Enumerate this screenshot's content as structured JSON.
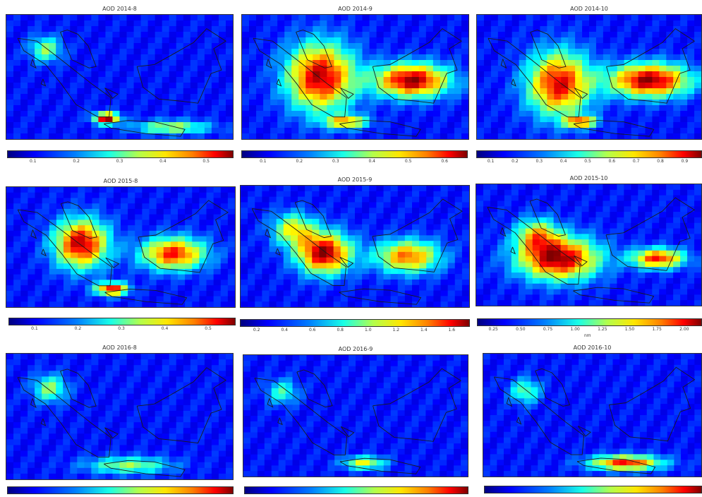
{
  "panels": [
    {
      "title": "AOD 2014-8",
      "ticks": [
        "0.1",
        "0.2",
        "0.3",
        "0.4",
        "0.5"
      ],
      "hotspots": [
        {
          "lon": 105.5,
          "lat": -6.0,
          "level": 1.0,
          "rx": 1.2,
          "ry": 0.7
        },
        {
          "lon": 98.5,
          "lat": 4.0,
          "level": 0.45,
          "rx": 1.5,
          "ry": 1.5
        },
        {
          "lon": 113,
          "lat": -7.3,
          "level": 0.5,
          "rx": 3.5,
          "ry": 0.8
        }
      ]
    },
    {
      "title": "AOD 2014-9",
      "ticks": [
        "0.1",
        "0.2",
        "0.3",
        "0.4",
        "0.5",
        "0.6"
      ],
      "hotspots": [
        {
          "lon": 103.0,
          "lat": 0.0,
          "level": 0.95,
          "rx": 3.2,
          "ry": 4.0
        },
        {
          "lon": 113.5,
          "lat": -0.5,
          "level": 1.0,
          "rx": 3.5,
          "ry": 2.0
        },
        {
          "lon": 106,
          "lat": -6.5,
          "level": 0.65,
          "rx": 2,
          "ry": 0.8
        }
      ]
    },
    {
      "title": "AOD 2014-10",
      "ticks": [
        "0.1",
        "0.2",
        "0.3",
        "0.4",
        "0.5",
        "0.6",
        "0.7",
        "0.8",
        "0.9"
      ],
      "hotspots": [
        {
          "lon": 103.5,
          "lat": -1.0,
          "level": 0.9,
          "rx": 3,
          "ry": 3.8
        },
        {
          "lon": 114.0,
          "lat": -0.5,
          "level": 1.0,
          "rx": 3.8,
          "ry": 2
        },
        {
          "lon": 106,
          "lat": -6.5,
          "level": 0.75,
          "rx": 1.5,
          "ry": 0.7
        }
      ]
    },
    {
      "title": "AOD 2015-8",
      "ticks": [
        "0.1",
        "0.2",
        "0.3",
        "0.4",
        "0.5"
      ],
      "hotspots": [
        {
          "lon": 102.5,
          "lat": 0.5,
          "level": 0.95,
          "rx": 2.5,
          "ry": 3
        },
        {
          "lon": 113,
          "lat": -1.0,
          "level": 0.85,
          "rx": 3,
          "ry": 2
        },
        {
          "lon": 106,
          "lat": -6.3,
          "level": 0.9,
          "rx": 1.5,
          "ry": 0.8
        }
      ]
    },
    {
      "title": "AOD 2015-9",
      "ticks": [
        "0.2",
        "0.4",
        "0.6",
        "0.8",
        "1.0",
        "1.2",
        "1.4",
        "1.6"
      ],
      "hotspots": [
        {
          "lon": 103.5,
          "lat": -1.0,
          "level": 1.0,
          "rx": 2.5,
          "ry": 2.5
        },
        {
          "lon": 113,
          "lat": -1.5,
          "level": 0.75,
          "rx": 3,
          "ry": 2
        },
        {
          "lon": 100,
          "lat": 2.5,
          "level": 0.55,
          "rx": 2,
          "ry": 2
        }
      ]
    },
    {
      "title": "AOD 2015-10",
      "ticks": [
        "0.25",
        "0.50",
        "0.75",
        "1.00",
        "1.25",
        "1.50",
        "1.75",
        "2.00"
      ],
      "unit": "nm",
      "hotspots": [
        {
          "lon": 103.5,
          "lat": -2.0,
          "level": 1.0,
          "rx": 3.8,
          "ry": 2.6
        },
        {
          "lon": 115,
          "lat": -2.0,
          "level": 0.85,
          "rx": 2.5,
          "ry": 1.2
        },
        {
          "lon": 101,
          "lat": 1.5,
          "level": 0.55,
          "rx": 2,
          "ry": 2
        }
      ]
    },
    {
      "title": "AOD 2016-8",
      "ticks": [],
      "hotspots": [
        {
          "lon": 99,
          "lat": 4,
          "level": 0.45,
          "rx": 1.6,
          "ry": 1.6
        },
        {
          "lon": 108,
          "lat": -7.0,
          "level": 0.45,
          "rx": 4,
          "ry": 1
        }
      ]
    },
    {
      "title": "AOD 2016-9",
      "ticks": [],
      "hotspots": [
        {
          "lon": 108,
          "lat": -7.0,
          "level": 0.55,
          "rx": 2,
          "ry": 0.8
        },
        {
          "lon": 98.5,
          "lat": 3.5,
          "level": 0.35,
          "rx": 1.5,
          "ry": 1.5
        }
      ]
    },
    {
      "title": "AOD 2016-10",
      "ticks": [],
      "hotspots": [
        {
          "lon": 111,
          "lat": -7.0,
          "level": 0.85,
          "rx": 3.5,
          "ry": 0.9
        },
        {
          "lon": 99,
          "lat": 3.5,
          "level": 0.4,
          "rx": 1.5,
          "ry": 1.5
        }
      ]
    }
  ],
  "colors": {
    "ocean": "#1d3fcf",
    "coast": "#1a1a1a"
  }
}
